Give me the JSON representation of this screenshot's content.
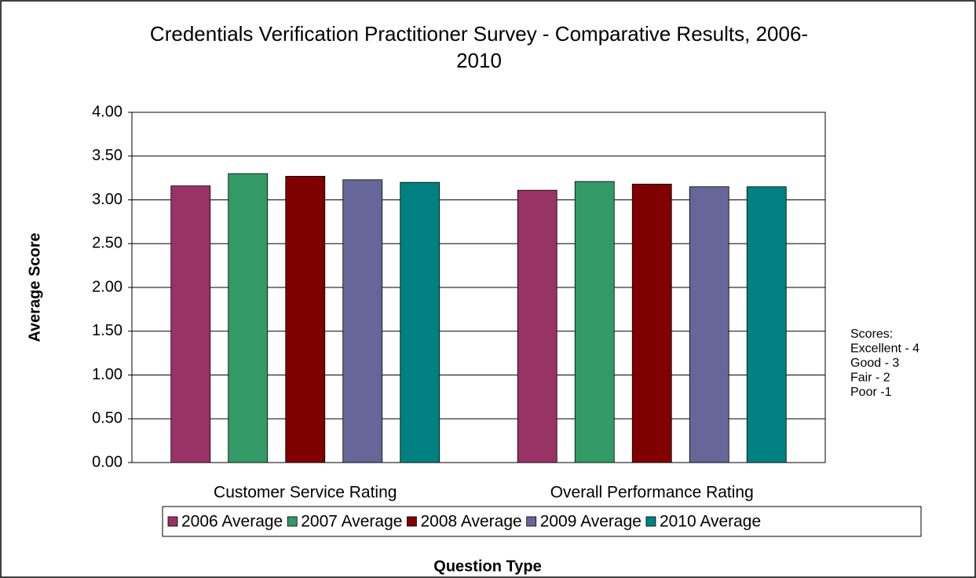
{
  "chart_data": {
    "type": "bar",
    "title": "Credentials Verification Practitioner Survey - Comparative Results, 2006-2010",
    "x_label": "Question Type",
    "y_label": "Average Score",
    "categories": [
      "Customer Service Rating",
      "Overall Performance Rating"
    ],
    "series": [
      {
        "name": "2006 Average",
        "color": "#993366",
        "values": [
          3.16,
          3.11
        ]
      },
      {
        "name": "2007 Average",
        "color": "#339966",
        "values": [
          3.3,
          3.21
        ]
      },
      {
        "name": "2008 Average",
        "color": "#800000",
        "values": [
          3.27,
          3.18
        ]
      },
      {
        "name": "2009 Average",
        "color": "#666699",
        "values": [
          3.23,
          3.15
        ]
      },
      {
        "name": "2010 Average",
        "color": "#008080",
        "values": [
          3.2,
          3.15
        ]
      }
    ],
    "ylim": [
      0,
      4
    ],
    "yticks": [
      {
        "value": 0,
        "label": "0.00"
      },
      {
        "value": 0.5,
        "label": "0.50"
      },
      {
        "value": 1,
        "label": "1.00"
      },
      {
        "value": 1.5,
        "label": "1.50"
      },
      {
        "value": 2,
        "label": "2.00"
      },
      {
        "value": 2.5,
        "label": "2.50"
      },
      {
        "value": 3,
        "label": "3.00"
      },
      {
        "value": 3.5,
        "label": "3.50"
      },
      {
        "value": 4,
        "label": "4.00"
      }
    ],
    "grid": true,
    "legend": "bottom",
    "annotation": [
      "Scores:",
      "Excellent - 4",
      "Good - 3",
      "Fair - 2",
      "Poor -1"
    ]
  }
}
